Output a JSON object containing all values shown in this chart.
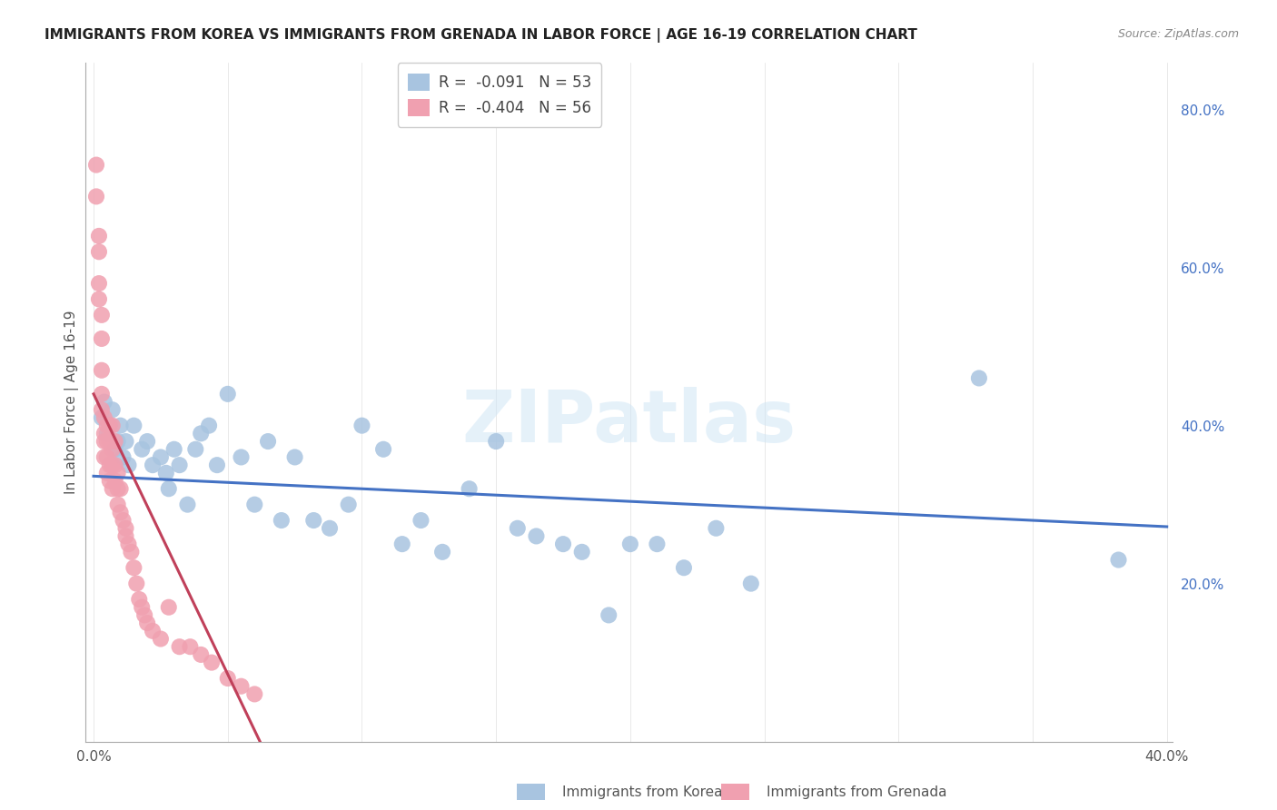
{
  "title": "IMMIGRANTS FROM KOREA VS IMMIGRANTS FROM GRENADA IN LABOR FORCE | AGE 16-19 CORRELATION CHART",
  "source": "Source: ZipAtlas.com",
  "ylabel_label": "In Labor Force | Age 16-19",
  "x_label_bottom": "Immigrants from Korea",
  "x_label_bottom2": "Immigrants from Grenada",
  "xlim": [
    -0.003,
    0.402
  ],
  "ylim": [
    0.0,
    0.86
  ],
  "korea_R": "-0.091",
  "korea_N": "53",
  "grenada_R": "-0.404",
  "grenada_N": "56",
  "korea_color": "#a8c4e0",
  "grenada_color": "#f0a0b0",
  "korea_line_color": "#4472c4",
  "grenada_line_color": "#c0405a",
  "watermark": "ZIPatlas",
  "korea_scatter_x": [
    0.003,
    0.004,
    0.005,
    0.006,
    0.007,
    0.008,
    0.009,
    0.01,
    0.011,
    0.012,
    0.013,
    0.015,
    0.018,
    0.02,
    0.022,
    0.025,
    0.027,
    0.028,
    0.03,
    0.032,
    0.035,
    0.038,
    0.04,
    0.043,
    0.046,
    0.05,
    0.055,
    0.06,
    0.065,
    0.07,
    0.075,
    0.082,
    0.088,
    0.095,
    0.1,
    0.108,
    0.115,
    0.122,
    0.13,
    0.14,
    0.15,
    0.158,
    0.165,
    0.175,
    0.182,
    0.192,
    0.2,
    0.21,
    0.22,
    0.232,
    0.245,
    0.33,
    0.382
  ],
  "korea_scatter_y": [
    0.41,
    0.43,
    0.39,
    0.4,
    0.42,
    0.37,
    0.38,
    0.4,
    0.36,
    0.38,
    0.35,
    0.4,
    0.37,
    0.38,
    0.35,
    0.36,
    0.34,
    0.32,
    0.37,
    0.35,
    0.3,
    0.37,
    0.39,
    0.4,
    0.35,
    0.44,
    0.36,
    0.3,
    0.38,
    0.28,
    0.36,
    0.28,
    0.27,
    0.3,
    0.4,
    0.37,
    0.25,
    0.28,
    0.24,
    0.32,
    0.38,
    0.27,
    0.26,
    0.25,
    0.24,
    0.16,
    0.25,
    0.25,
    0.22,
    0.27,
    0.2,
    0.46,
    0.23
  ],
  "grenada_scatter_x": [
    0.001,
    0.001,
    0.002,
    0.002,
    0.002,
    0.002,
    0.003,
    0.003,
    0.003,
    0.003,
    0.003,
    0.004,
    0.004,
    0.004,
    0.004,
    0.005,
    0.005,
    0.005,
    0.005,
    0.006,
    0.006,
    0.006,
    0.006,
    0.007,
    0.007,
    0.007,
    0.007,
    0.008,
    0.008,
    0.008,
    0.009,
    0.009,
    0.009,
    0.01,
    0.01,
    0.011,
    0.012,
    0.012,
    0.013,
    0.014,
    0.015,
    0.016,
    0.017,
    0.018,
    0.019,
    0.02,
    0.022,
    0.025,
    0.028,
    0.032,
    0.036,
    0.04,
    0.044,
    0.05,
    0.055,
    0.06
  ],
  "grenada_scatter_y": [
    0.73,
    0.69,
    0.64,
    0.62,
    0.58,
    0.56,
    0.54,
    0.51,
    0.47,
    0.44,
    0.42,
    0.41,
    0.39,
    0.38,
    0.36,
    0.4,
    0.38,
    0.36,
    0.34,
    0.4,
    0.38,
    0.35,
    0.33,
    0.4,
    0.37,
    0.35,
    0.32,
    0.38,
    0.35,
    0.33,
    0.34,
    0.32,
    0.3,
    0.32,
    0.29,
    0.28,
    0.27,
    0.26,
    0.25,
    0.24,
    0.22,
    0.2,
    0.18,
    0.17,
    0.16,
    0.15,
    0.14,
    0.13,
    0.17,
    0.12,
    0.12,
    0.11,
    0.1,
    0.08,
    0.07,
    0.06
  ],
  "korea_regline_x": [
    0.0,
    0.4
  ],
  "korea_regline_y": [
    0.336,
    0.272
  ],
  "grenada_regline_x": [
    0.0,
    0.062
  ],
  "grenada_regline_y": [
    0.44,
    0.0
  ]
}
